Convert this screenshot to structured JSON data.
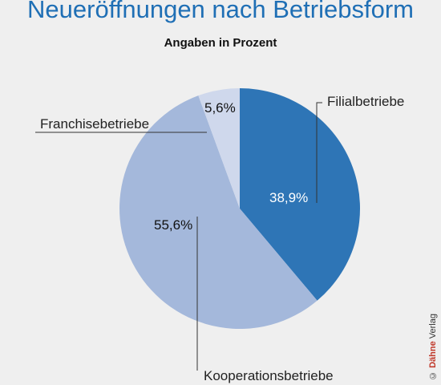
{
  "chart_data": {
    "type": "pie",
    "title": "Neueröffnungen nach Betriebsform",
    "subtitle": "Angaben in Prozent",
    "slices": [
      {
        "name": "Filialbetriebe",
        "value": 38.9,
        "label": "38,9%",
        "color": "#2e75b6"
      },
      {
        "name": "Kooperationsbetriebe",
        "value": 55.6,
        "label": "55,6%",
        "color": "#a4b8db"
      },
      {
        "name": "Franchisebetriebe",
        "value": 5.6,
        "label": "5,6%",
        "color": "#cfd8ec"
      }
    ],
    "title_color": "#1f6fb5"
  },
  "credit": {
    "symbol": "©",
    "brand": "Dähne",
    "rest": "Verlag"
  }
}
